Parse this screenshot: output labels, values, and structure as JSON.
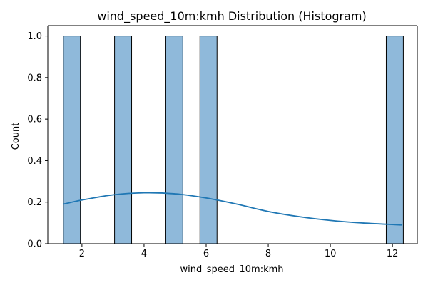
{
  "chart_data": {
    "type": "bar",
    "title": "wind_speed_10m:kmh Distribution (Histogram)",
    "xlabel": "wind_speed_10m:kmh",
    "ylabel": "Count",
    "xlim": [
      0.9,
      12.8
    ],
    "ylim": [
      0,
      1.05
    ],
    "x_ticks": [
      2,
      4,
      6,
      8,
      10,
      12
    ],
    "y_ticks": [
      0.0,
      0.2,
      0.4,
      0.6,
      0.8,
      1.0
    ],
    "x_tick_labels": [
      "2",
      "4",
      "6",
      "8",
      "10",
      "12"
    ],
    "y_tick_labels": [
      "0.0",
      "0.2",
      "0.4",
      "0.6",
      "0.8",
      "1.0"
    ],
    "bins": [
      {
        "x0": 1.4,
        "x1": 1.95,
        "count": 1
      },
      {
        "x0": 3.05,
        "x1": 3.6,
        "count": 1
      },
      {
        "x0": 4.7,
        "x1": 5.25,
        "count": 1
      },
      {
        "x0": 5.8,
        "x1": 6.35,
        "count": 1
      },
      {
        "x0": 11.8,
        "x1": 12.35,
        "count": 1
      }
    ],
    "kde": {
      "x": [
        1.4,
        2.0,
        3.0,
        4.0,
        5.0,
        6.0,
        7.0,
        8.0,
        9.0,
        10.0,
        11.0,
        12.3
      ],
      "y": [
        0.19,
        0.21,
        0.235,
        0.245,
        0.24,
        0.22,
        0.19,
        0.155,
        0.13,
        0.112,
        0.1,
        0.09
      ]
    },
    "colors": {
      "bar_fill": "#8fb9da",
      "bar_edge": "#000000",
      "kde_line": "#1f77b4",
      "axes": "#000000"
    },
    "grid": false,
    "legend": "none"
  }
}
